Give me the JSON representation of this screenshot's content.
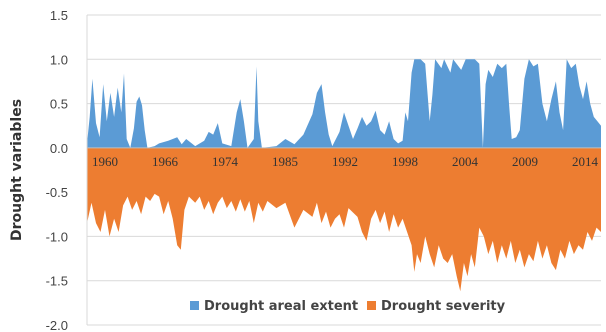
{
  "chart_data": {
    "type": "area",
    "ylabel": "Drought variables",
    "ylim": [
      -2.0,
      1.5
    ],
    "yticks": [
      "1.5",
      "1.0",
      "0.5",
      "0.0",
      "-0.5",
      "-1.0",
      "-1.5",
      "-2.0"
    ],
    "xlim": [
      1960,
      2017
    ],
    "xtick_labels": [
      "1960",
      "1966",
      "1974",
      "1985",
      "1992",
      "1998",
      "2004",
      "2009",
      "2014"
    ],
    "grid": "horizontal",
    "legend_position": "bottom",
    "series": [
      {
        "name": "Drought areal extent",
        "color": "#5b9bd5",
        "points": [
          [
            1960.0,
            0.05
          ],
          [
            1960.3,
            0.35
          ],
          [
            1960.6,
            0.78
          ],
          [
            1961.0,
            0.28
          ],
          [
            1961.4,
            0.12
          ],
          [
            1961.8,
            0.72
          ],
          [
            1962.2,
            0.3
          ],
          [
            1962.6,
            0.62
          ],
          [
            1963.0,
            0.35
          ],
          [
            1963.4,
            0.68
          ],
          [
            1963.8,
            0.4
          ],
          [
            1964.1,
            0.84
          ],
          [
            1964.4,
            0.1
          ],
          [
            1964.8,
            0.0
          ],
          [
            1965.2,
            0.22
          ],
          [
            1965.5,
            0.52
          ],
          [
            1965.8,
            0.58
          ],
          [
            1966.1,
            0.48
          ],
          [
            1966.4,
            0.2
          ],
          [
            1966.7,
            0.0
          ],
          [
            1967.5,
            0.02
          ],
          [
            1968.0,
            0.05
          ],
          [
            1969.0,
            0.08
          ],
          [
            1970.0,
            0.12
          ],
          [
            1970.5,
            0.04
          ],
          [
            1971.0,
            0.1
          ],
          [
            1972.0,
            0.02
          ],
          [
            1973.0,
            0.08
          ],
          [
            1973.5,
            0.18
          ],
          [
            1974.0,
            0.15
          ],
          [
            1974.5,
            0.28
          ],
          [
            1975.0,
            0.05
          ],
          [
            1976.0,
            0.02
          ],
          [
            1976.6,
            0.4
          ],
          [
            1977.0,
            0.55
          ],
          [
            1977.4,
            0.3
          ],
          [
            1977.8,
            0.0
          ],
          [
            1978.5,
            0.1
          ],
          [
            1978.8,
            0.92
          ],
          [
            1979.0,
            0.3
          ],
          [
            1979.4,
            0.0
          ],
          [
            1981.0,
            0.02
          ],
          [
            1982.0,
            0.1
          ],
          [
            1983.0,
            0.04
          ],
          [
            1984.0,
            0.15
          ],
          [
            1985.0,
            0.38
          ],
          [
            1985.5,
            0.62
          ],
          [
            1986.0,
            0.72
          ],
          [
            1986.4,
            0.4
          ],
          [
            1986.8,
            0.15
          ],
          [
            1987.2,
            0.02
          ],
          [
            1988.0,
            0.18
          ],
          [
            1988.5,
            0.4
          ],
          [
            1989.0,
            0.25
          ],
          [
            1989.5,
            0.1
          ],
          [
            1990.0,
            0.22
          ],
          [
            1990.5,
            0.35
          ],
          [
            1991.0,
            0.25
          ],
          [
            1991.5,
            0.3
          ],
          [
            1992.0,
            0.42
          ],
          [
            1992.5,
            0.2
          ],
          [
            1993.0,
            0.15
          ],
          [
            1993.5,
            0.3
          ],
          [
            1994.0,
            0.1
          ],
          [
            1994.5,
            0.05
          ],
          [
            1995.0,
            0.08
          ],
          [
            1995.3,
            0.4
          ],
          [
            1995.6,
            0.3
          ],
          [
            1996.0,
            0.85
          ],
          [
            1996.3,
            1.0
          ],
          [
            1997.0,
            1.0
          ],
          [
            1997.5,
            0.95
          ],
          [
            1998.0,
            0.3
          ],
          [
            1998.3,
            0.6
          ],
          [
            1998.6,
            1.0
          ],
          [
            1999.3,
            0.9
          ],
          [
            1999.6,
            1.0
          ],
          [
            2000.3,
            0.85
          ],
          [
            2000.6,
            1.0
          ],
          [
            2001.5,
            0.88
          ],
          [
            2002.0,
            1.0
          ],
          [
            2003.0,
            1.0
          ],
          [
            2003.5,
            0.95
          ],
          [
            2003.9,
            0.0
          ],
          [
            2004.2,
            0.72
          ],
          [
            2004.5,
            0.88
          ],
          [
            2005.0,
            0.8
          ],
          [
            2005.5,
            0.95
          ],
          [
            2006.0,
            0.9
          ],
          [
            2006.5,
            0.95
          ],
          [
            2006.8,
            0.5
          ],
          [
            2007.1,
            0.1
          ],
          [
            2007.6,
            0.12
          ],
          [
            2008.0,
            0.2
          ],
          [
            2008.5,
            0.78
          ],
          [
            2009.0,
            1.0
          ],
          [
            2009.5,
            0.92
          ],
          [
            2010.0,
            0.95
          ],
          [
            2010.5,
            0.5
          ],
          [
            2011.0,
            0.3
          ],
          [
            2011.5,
            0.55
          ],
          [
            2012.0,
            0.75
          ],
          [
            2012.4,
            0.4
          ],
          [
            2012.8,
            0.2
          ],
          [
            2013.2,
            1.0
          ],
          [
            2013.7,
            0.9
          ],
          [
            2014.2,
            0.95
          ],
          [
            2014.6,
            0.7
          ],
          [
            2015.0,
            0.55
          ],
          [
            2015.4,
            0.75
          ],
          [
            2015.8,
            0.5
          ],
          [
            2016.2,
            0.35
          ],
          [
            2016.6,
            0.3
          ],
          [
            2017.0,
            0.25
          ]
        ]
      },
      {
        "name": "Drought severity",
        "color": "#ed7d31",
        "points": [
          [
            1960.0,
            -0.85
          ],
          [
            1960.5,
            -0.62
          ],
          [
            1961.0,
            -0.85
          ],
          [
            1961.5,
            -0.95
          ],
          [
            1962.0,
            -0.7
          ],
          [
            1962.5,
            -1.0
          ],
          [
            1963.0,
            -0.8
          ],
          [
            1963.5,
            -0.95
          ],
          [
            1964.0,
            -0.65
          ],
          [
            1964.5,
            -0.55
          ],
          [
            1965.0,
            -0.7
          ],
          [
            1965.5,
            -0.6
          ],
          [
            1966.0,
            -0.75
          ],
          [
            1966.5,
            -0.55
          ],
          [
            1967.0,
            -0.6
          ],
          [
            1967.5,
            -0.52
          ],
          [
            1968.0,
            -0.55
          ],
          [
            1968.5,
            -0.75
          ],
          [
            1969.0,
            -0.6
          ],
          [
            1969.5,
            -0.8
          ],
          [
            1970.0,
            -1.1
          ],
          [
            1970.4,
            -1.15
          ],
          [
            1970.8,
            -0.7
          ],
          [
            1971.3,
            -0.55
          ],
          [
            1972.0,
            -0.62
          ],
          [
            1972.5,
            -0.55
          ],
          [
            1973.0,
            -0.7
          ],
          [
            1973.5,
            -0.6
          ],
          [
            1974.0,
            -0.75
          ],
          [
            1974.5,
            -0.62
          ],
          [
            1975.0,
            -0.55
          ],
          [
            1975.5,
            -0.68
          ],
          [
            1976.0,
            -0.6
          ],
          [
            1976.5,
            -0.72
          ],
          [
            1977.0,
            -0.58
          ],
          [
            1977.5,
            -0.72
          ],
          [
            1978.0,
            -0.6
          ],
          [
            1978.5,
            -0.85
          ],
          [
            1979.0,
            -0.62
          ],
          [
            1979.5,
            -0.72
          ],
          [
            1980.0,
            -0.6
          ],
          [
            1981.0,
            -0.68
          ],
          [
            1982.0,
            -0.62
          ],
          [
            1983.0,
            -0.9
          ],
          [
            1984.0,
            -0.7
          ],
          [
            1985.0,
            -0.78
          ],
          [
            1985.5,
            -0.62
          ],
          [
            1986.0,
            -0.85
          ],
          [
            1986.5,
            -0.72
          ],
          [
            1987.0,
            -0.9
          ],
          [
            1987.5,
            -0.8
          ],
          [
            1988.0,
            -0.75
          ],
          [
            1988.5,
            -0.9
          ],
          [
            1989.0,
            -0.68
          ],
          [
            1990.0,
            -0.78
          ],
          [
            1990.5,
            -0.95
          ],
          [
            1991.0,
            -1.05
          ],
          [
            1991.5,
            -0.8
          ],
          [
            1992.0,
            -0.7
          ],
          [
            1992.5,
            -0.85
          ],
          [
            1993.0,
            -0.72
          ],
          [
            1993.5,
            -0.95
          ],
          [
            1994.0,
            -0.75
          ],
          [
            1994.5,
            -0.9
          ],
          [
            1995.0,
            -0.8
          ],
          [
            1995.5,
            -0.95
          ],
          [
            1996.0,
            -1.1
          ],
          [
            1996.3,
            -1.4
          ],
          [
            1996.6,
            -1.2
          ],
          [
            1997.0,
            -1.3
          ],
          [
            1997.5,
            -1.0
          ],
          [
            1998.0,
            -1.2
          ],
          [
            1998.5,
            -1.35
          ],
          [
            1999.0,
            -1.1
          ],
          [
            1999.5,
            -1.25
          ],
          [
            2000.0,
            -1.3
          ],
          [
            2000.5,
            -1.2
          ],
          [
            2001.0,
            -1.45
          ],
          [
            2001.4,
            -1.62
          ],
          [
            2001.8,
            -1.3
          ],
          [
            2002.2,
            -1.45
          ],
          [
            2002.6,
            -1.2
          ],
          [
            2003.0,
            -1.35
          ],
          [
            2003.5,
            -0.9
          ],
          [
            2004.0,
            -1.0
          ],
          [
            2004.5,
            -1.2
          ],
          [
            2005.0,
            -1.05
          ],
          [
            2005.5,
            -1.3
          ],
          [
            2006.0,
            -1.1
          ],
          [
            2006.5,
            -1.25
          ],
          [
            2007.0,
            -1.05
          ],
          [
            2007.5,
            -1.3
          ],
          [
            2008.0,
            -1.15
          ],
          [
            2008.5,
            -1.35
          ],
          [
            2009.0,
            -1.2
          ],
          [
            2009.5,
            -1.28
          ],
          [
            2010.0,
            -1.05
          ],
          [
            2010.5,
            -1.25
          ],
          [
            2011.0,
            -1.1
          ],
          [
            2011.5,
            -1.3
          ],
          [
            2012.0,
            -1.38
          ],
          [
            2012.5,
            -1.15
          ],
          [
            2013.0,
            -1.25
          ],
          [
            2013.5,
            -1.05
          ],
          [
            2014.0,
            -1.2
          ],
          [
            2014.5,
            -1.1
          ],
          [
            2015.0,
            -1.15
          ],
          [
            2015.5,
            -0.95
          ],
          [
            2016.0,
            -1.05
          ],
          [
            2016.5,
            -0.9
          ],
          [
            2017.0,
            -0.95
          ]
        ]
      }
    ]
  }
}
